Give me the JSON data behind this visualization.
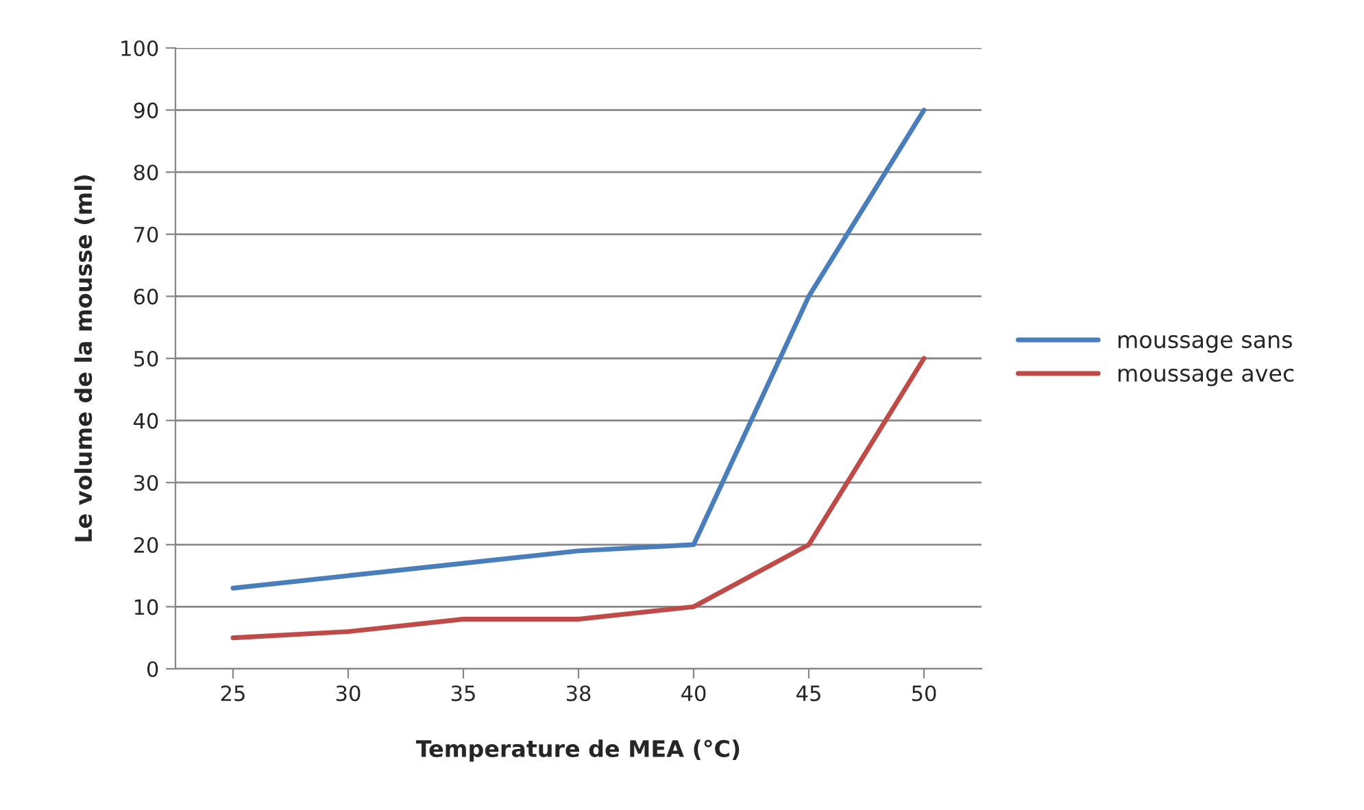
{
  "chart_data": {
    "type": "line",
    "xlabel": "Temperature de MEA (°C)",
    "ylabel": "Le volume de la mousse (ml)",
    "categories": [
      "25",
      "30",
      "35",
      "38",
      "40",
      "45",
      "50"
    ],
    "series": [
      {
        "name": "moussage sans",
        "color": "#4a7ebb",
        "values": [
          13,
          15,
          17,
          19,
          20,
          60,
          90
        ]
      },
      {
        "name": "moussage avec",
        "color": "#be4b48",
        "values": [
          5,
          6,
          8,
          8,
          10,
          20,
          50
        ]
      }
    ],
    "ylim": [
      0,
      100
    ],
    "yticks": [
      0,
      10,
      20,
      30,
      40,
      50,
      60,
      70,
      80,
      90,
      100
    ],
    "grid": "y",
    "legend": "right",
    "marker": "none",
    "line_style": "solid"
  }
}
